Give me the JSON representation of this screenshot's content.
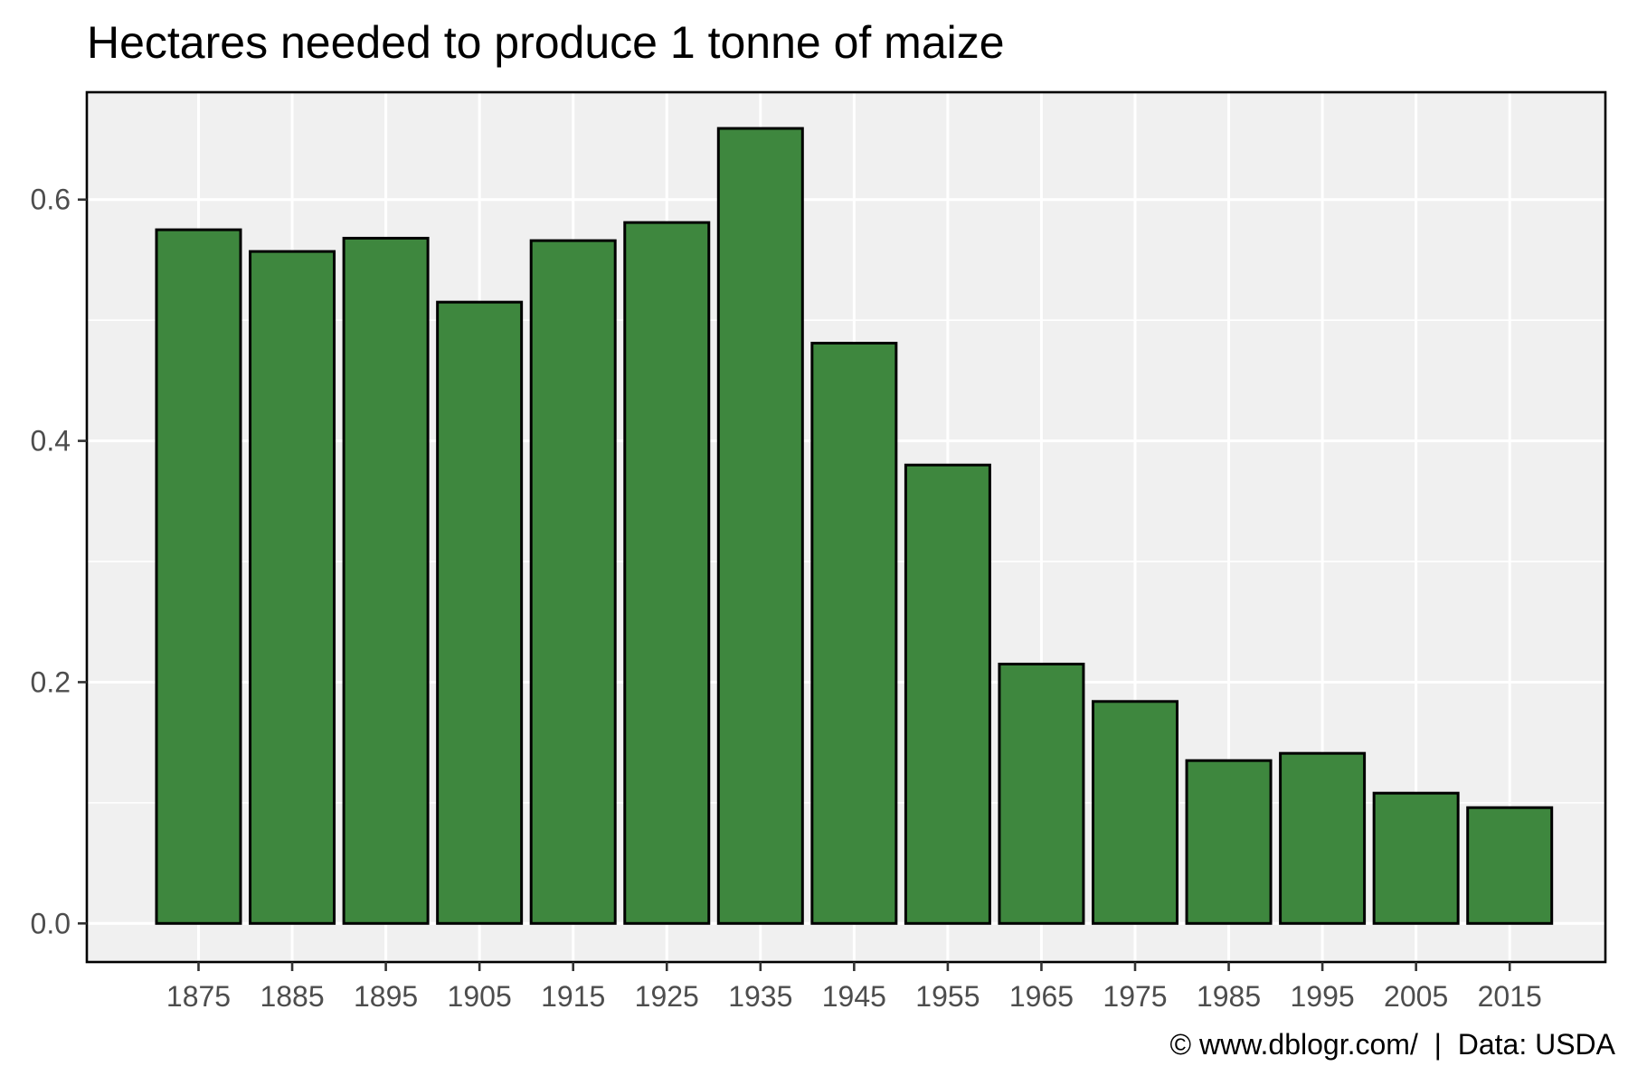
{
  "chart_data": {
    "type": "bar",
    "title": "Hectares needed to produce 1 tonne of maize",
    "xlabel": "",
    "ylabel": "",
    "categories": [
      "1875",
      "1885",
      "1895",
      "1905",
      "1915",
      "1925",
      "1935",
      "1945",
      "1955",
      "1965",
      "1975",
      "1985",
      "1995",
      "2005",
      "2015"
    ],
    "values": [
      0.575,
      0.557,
      0.568,
      0.515,
      0.566,
      0.581,
      0.659,
      0.481,
      0.38,
      0.215,
      0.184,
      0.135,
      0.141,
      0.108,
      0.096
    ],
    "ylim": [
      -0.032,
      0.689
    ],
    "yticks": [
      0.0,
      0.2,
      0.4,
      0.6
    ],
    "ytick_labels": [
      "0.0",
      "0.2",
      "0.4",
      "0.6"
    ],
    "grid": true,
    "legend": "none",
    "caption": "© www.dblogr.com/  |  Data: USDA",
    "colors": {
      "bar_fill": "#3e873e",
      "bar_outline": "#000000",
      "panel_background": "#f0f0f0",
      "grid": "#ffffff",
      "tick_label": "#4d4d4d"
    }
  }
}
